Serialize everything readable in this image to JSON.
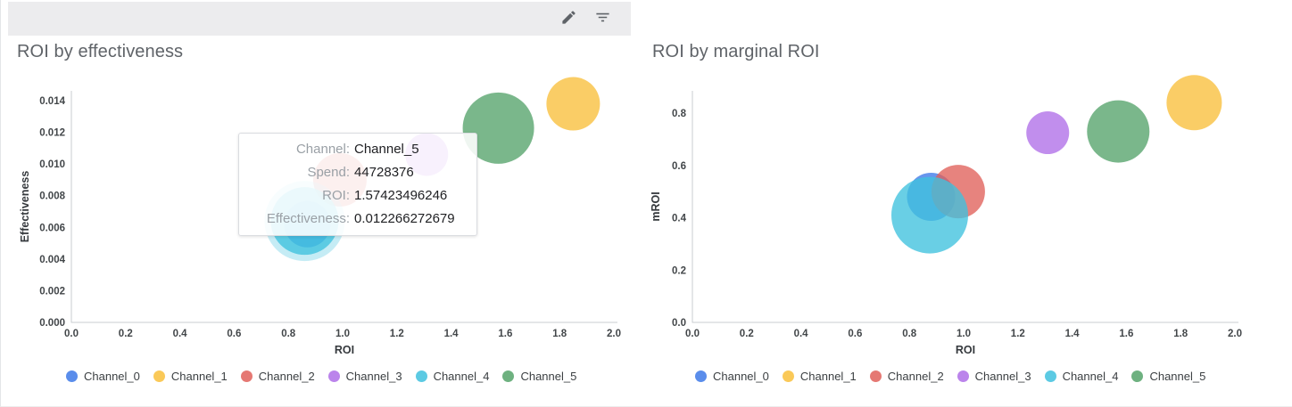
{
  "toolbar": {
    "icons": [
      {
        "name": "edit-pencil-icon"
      },
      {
        "name": "filter-list-icon"
      }
    ]
  },
  "channels": [
    {
      "name": "Channel_0",
      "color": "#3d79e8"
    },
    {
      "name": "Channel_1",
      "color": "#f9bf3b"
    },
    {
      "name": "Channel_2",
      "color": "#e0605a"
    },
    {
      "name": "Channel_3",
      "color": "#af6ee8"
    },
    {
      "name": "Channel_4",
      "color": "#3fc1de"
    },
    {
      "name": "Channel_5",
      "color": "#55a36a"
    }
  ],
  "chart_data": [
    {
      "type": "bubble",
      "title": "ROI by effectiveness",
      "xlabel": "ROI",
      "ylabel": "Effectiveness",
      "xlim": [
        0,
        2.0
      ],
      "ylim": [
        0,
        0.014
      ],
      "grid": false,
      "legend_position": "bottom",
      "x_ticks": {
        "values": [
          0,
          0.2,
          0.4,
          0.6,
          0.8,
          1.0,
          1.2,
          1.4,
          1.6,
          1.8,
          2.0
        ],
        "labels": [
          "0.0",
          "0.2",
          "0.4",
          "0.6",
          "0.8",
          "1.0",
          "1.2",
          "1.4",
          "1.6",
          "1.8",
          "2.0"
        ]
      },
      "y_ticks": {
        "values": [
          0,
          0.002,
          0.004,
          0.006,
          0.008,
          0.01,
          0.012,
          0.014
        ],
        "labels": [
          "0.000",
          "0.002",
          "0.004",
          "0.006",
          "0.008",
          "0.010",
          "0.012",
          "0.014"
        ]
      },
      "points": [
        {
          "channel": "Channel_0",
          "x": 0.87,
          "y": 0.0062,
          "r": 26
        },
        {
          "channel": "Channel_1",
          "x": 1.85,
          "y": 0.0138,
          "r": 30
        },
        {
          "channel": "Channel_2",
          "x": 0.99,
          "y": 0.009,
          "r": 30
        },
        {
          "channel": "Channel_3",
          "x": 1.31,
          "y": 0.0106,
          "r": 24
        },
        {
          "channel": "Channel_4",
          "x": 0.86,
          "y": 0.0064,
          "r": 38,
          "halo": true
        },
        {
          "channel": "Channel_5",
          "x": 1.57423496246,
          "y": 0.012266272679,
          "r": 40,
          "spend": 44728376
        }
      ]
    },
    {
      "type": "bubble",
      "title": "ROI by marginal ROI",
      "xlabel": "ROI",
      "ylabel": "mROI",
      "xlim": [
        0,
        2.0
      ],
      "ylim": [
        0,
        0.8
      ],
      "grid": false,
      "legend_position": "bottom",
      "x_ticks": {
        "values": [
          0,
          0.2,
          0.4,
          0.6,
          0.8,
          1.0,
          1.2,
          1.4,
          1.6,
          1.8,
          2.0
        ],
        "labels": [
          "0.0",
          "0.2",
          "0.4",
          "0.6",
          "0.8",
          "1.0",
          "1.2",
          "1.4",
          "1.6",
          "1.8",
          "2.0"
        ]
      },
      "y_ticks": {
        "values": [
          0,
          0.2,
          0.4,
          0.6,
          0.8
        ],
        "labels": [
          "0.0",
          "0.2",
          "0.4",
          "0.6",
          "0.8"
        ]
      },
      "points": [
        {
          "channel": "Channel_0",
          "x": 0.88,
          "y": 0.48,
          "r": 27
        },
        {
          "channel": "Channel_1",
          "x": 1.85,
          "y": 0.84,
          "r": 31
        },
        {
          "channel": "Channel_2",
          "x": 0.98,
          "y": 0.5,
          "r": 30
        },
        {
          "channel": "Channel_3",
          "x": 1.31,
          "y": 0.725,
          "r": 24
        },
        {
          "channel": "Channel_4",
          "x": 0.875,
          "y": 0.41,
          "r": 43
        },
        {
          "channel": "Channel_5",
          "x": 1.57,
          "y": 0.73,
          "r": 35
        }
      ]
    }
  ],
  "tooltip": {
    "rows": [
      {
        "label": "Channel:",
        "value": "Channel_5"
      },
      {
        "label": "Spend:",
        "value": "44728376"
      },
      {
        "label": "ROI:",
        "value": "1.57423496246"
      },
      {
        "label": "Effectiveness:",
        "value": "0.012266272679"
      }
    ]
  }
}
